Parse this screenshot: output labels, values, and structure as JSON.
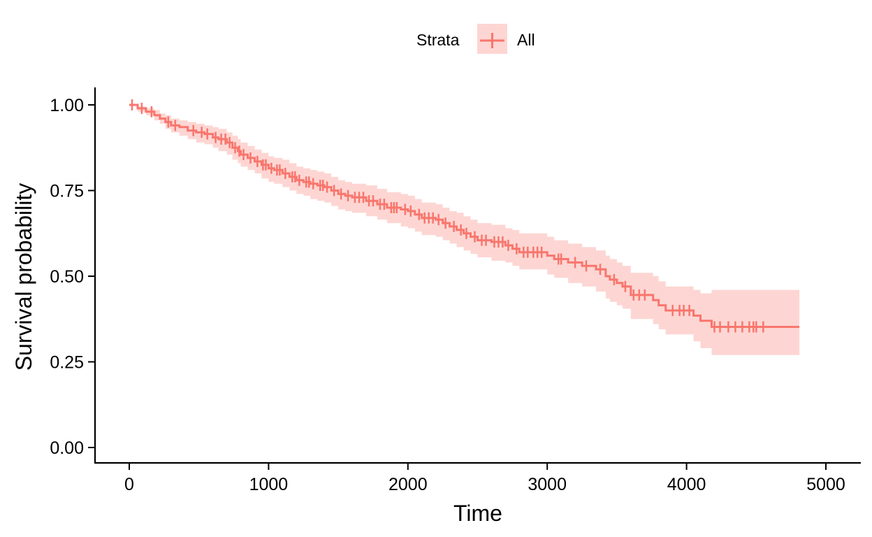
{
  "chart_data": {
    "type": "line",
    "subtype": "kaplan-meier",
    "title": "",
    "xlabel": "Time",
    "ylabel": "Survival probability",
    "xlim": [
      -250,
      5250
    ],
    "ylim": [
      -0.05,
      1.05
    ],
    "x_ticks": [
      0,
      1000,
      2000,
      3000,
      4000,
      5000
    ],
    "x_tick_labels": [
      "0",
      "1000",
      "2000",
      "3000",
      "4000",
      "5000"
    ],
    "y_ticks": [
      0,
      0.25,
      0.5,
      0.75,
      1.0
    ],
    "y_tick_labels": [
      "0.00",
      "0.25",
      "0.50",
      "0.75",
      "1.00"
    ],
    "grid": false,
    "legend": {
      "title": "Strata",
      "position": "top",
      "entries": [
        "All"
      ]
    },
    "colors": {
      "line": "#F8766D",
      "band": "#F8766D",
      "band_opacity": 0.3
    },
    "series": [
      {
        "name": "All",
        "steps": [
          [
            0,
            1.0
          ],
          [
            60,
            0.99
          ],
          [
            120,
            0.98
          ],
          [
            180,
            0.97
          ],
          [
            220,
            0.96
          ],
          [
            260,
            0.95
          ],
          [
            300,
            0.94
          ],
          [
            360,
            0.935
          ],
          [
            420,
            0.925
          ],
          [
            480,
            0.92
          ],
          [
            540,
            0.915
          ],
          [
            600,
            0.905
          ],
          [
            640,
            0.9
          ],
          [
            700,
            0.89
          ],
          [
            740,
            0.875
          ],
          [
            780,
            0.865
          ],
          [
            800,
            0.855
          ],
          [
            850,
            0.845
          ],
          [
            900,
            0.835
          ],
          [
            950,
            0.825
          ],
          [
            1000,
            0.815
          ],
          [
            1040,
            0.81
          ],
          [
            1100,
            0.8
          ],
          [
            1150,
            0.79
          ],
          [
            1200,
            0.78
          ],
          [
            1250,
            0.775
          ],
          [
            1300,
            0.77
          ],
          [
            1350,
            0.765
          ],
          [
            1400,
            0.76
          ],
          [
            1450,
            0.75
          ],
          [
            1500,
            0.74
          ],
          [
            1550,
            0.735
          ],
          [
            1600,
            0.73
          ],
          [
            1700,
            0.72
          ],
          [
            1780,
            0.71
          ],
          [
            1850,
            0.7
          ],
          [
            1950,
            0.695
          ],
          [
            2000,
            0.69
          ],
          [
            2050,
            0.68
          ],
          [
            2100,
            0.67
          ],
          [
            2200,
            0.665
          ],
          [
            2250,
            0.655
          ],
          [
            2300,
            0.645
          ],
          [
            2350,
            0.635
          ],
          [
            2400,
            0.625
          ],
          [
            2450,
            0.615
          ],
          [
            2500,
            0.605
          ],
          [
            2600,
            0.6
          ],
          [
            2700,
            0.59
          ],
          [
            2750,
            0.58
          ],
          [
            2800,
            0.57
          ],
          [
            3000,
            0.56
          ],
          [
            3050,
            0.55
          ],
          [
            3150,
            0.54
          ],
          [
            3250,
            0.53
          ],
          [
            3350,
            0.52
          ],
          [
            3420,
            0.5
          ],
          [
            3450,
            0.49
          ],
          [
            3500,
            0.48
          ],
          [
            3540,
            0.47
          ],
          [
            3600,
            0.445
          ],
          [
            3760,
            0.43
          ],
          [
            3800,
            0.415
          ],
          [
            3850,
            0.4
          ],
          [
            4050,
            0.385
          ],
          [
            4100,
            0.37
          ],
          [
            4180,
            0.352
          ],
          [
            4810,
            0.352
          ]
        ],
        "band": [
          [
            0,
            1.0,
            1.0
          ],
          [
            60,
            0.995,
            0.98
          ],
          [
            120,
            0.99,
            0.97
          ],
          [
            180,
            0.985,
            0.955
          ],
          [
            220,
            0.975,
            0.945
          ],
          [
            260,
            0.97,
            0.93
          ],
          [
            300,
            0.96,
            0.92
          ],
          [
            360,
            0.955,
            0.91
          ],
          [
            420,
            0.95,
            0.9
          ],
          [
            480,
            0.945,
            0.89
          ],
          [
            540,
            0.94,
            0.885
          ],
          [
            600,
            0.935,
            0.875
          ],
          [
            640,
            0.93,
            0.865
          ],
          [
            700,
            0.92,
            0.855
          ],
          [
            740,
            0.91,
            0.84
          ],
          [
            780,
            0.9,
            0.83
          ],
          [
            800,
            0.89,
            0.82
          ],
          [
            850,
            0.88,
            0.81
          ],
          [
            900,
            0.87,
            0.8
          ],
          [
            950,
            0.86,
            0.785
          ],
          [
            1000,
            0.85,
            0.775
          ],
          [
            1040,
            0.845,
            0.77
          ],
          [
            1100,
            0.84,
            0.76
          ],
          [
            1150,
            0.83,
            0.75
          ],
          [
            1200,
            0.82,
            0.74
          ],
          [
            1250,
            0.815,
            0.735
          ],
          [
            1300,
            0.81,
            0.725
          ],
          [
            1350,
            0.805,
            0.72
          ],
          [
            1400,
            0.8,
            0.715
          ],
          [
            1450,
            0.79,
            0.705
          ],
          [
            1500,
            0.78,
            0.695
          ],
          [
            1550,
            0.775,
            0.69
          ],
          [
            1600,
            0.77,
            0.685
          ],
          [
            1700,
            0.765,
            0.675
          ],
          [
            1780,
            0.755,
            0.665
          ],
          [
            1850,
            0.745,
            0.655
          ],
          [
            1950,
            0.74,
            0.645
          ],
          [
            2000,
            0.735,
            0.64
          ],
          [
            2050,
            0.725,
            0.63
          ],
          [
            2100,
            0.715,
            0.62
          ],
          [
            2200,
            0.71,
            0.615
          ],
          [
            2250,
            0.7,
            0.605
          ],
          [
            2300,
            0.69,
            0.595
          ],
          [
            2350,
            0.685,
            0.585
          ],
          [
            2400,
            0.675,
            0.575
          ],
          [
            2450,
            0.665,
            0.565
          ],
          [
            2500,
            0.655,
            0.555
          ],
          [
            2600,
            0.65,
            0.545
          ],
          [
            2700,
            0.64,
            0.54
          ],
          [
            2750,
            0.635,
            0.53
          ],
          [
            2800,
            0.625,
            0.52
          ],
          [
            3000,
            0.615,
            0.505
          ],
          [
            3050,
            0.605,
            0.495
          ],
          [
            3150,
            0.595,
            0.48
          ],
          [
            3250,
            0.585,
            0.47
          ],
          [
            3350,
            0.575,
            0.455
          ],
          [
            3420,
            0.56,
            0.435
          ],
          [
            3450,
            0.55,
            0.425
          ],
          [
            3500,
            0.54,
            0.415
          ],
          [
            3540,
            0.53,
            0.405
          ],
          [
            3600,
            0.51,
            0.375
          ],
          [
            3760,
            0.5,
            0.36
          ],
          [
            3800,
            0.485,
            0.345
          ],
          [
            3850,
            0.47,
            0.33
          ],
          [
            4050,
            0.46,
            0.31
          ],
          [
            4100,
            0.45,
            0.29
          ],
          [
            4180,
            0.46,
            0.27
          ],
          [
            4810,
            0.46,
            0.27
          ]
        ],
        "censor_times": [
          20,
          90,
          160,
          280,
          330,
          460,
          520,
          560,
          620,
          660,
          690,
          720,
          760,
          790,
          820,
          870,
          920,
          960,
          980,
          1020,
          1060,
          1080,
          1120,
          1170,
          1190,
          1220,
          1270,
          1290,
          1320,
          1370,
          1390,
          1420,
          1470,
          1520,
          1570,
          1620,
          1650,
          1680,
          1720,
          1750,
          1800,
          1830,
          1880,
          1900,
          1920,
          1980,
          2020,
          2080,
          2120,
          2150,
          2180,
          2220,
          2270,
          2330,
          2380,
          2420,
          2480,
          2530,
          2560,
          2620,
          2650,
          2680,
          2720,
          2780,
          2830,
          2860,
          2900,
          2930,
          2960,
          3080,
          3100,
          3200,
          3280,
          3380,
          3480,
          3560,
          3620,
          3660,
          3700,
          3900,
          3950,
          3980,
          4020,
          4200,
          4240,
          4300,
          4350,
          4400,
          4450,
          4480,
          4500,
          4550
        ]
      }
    ]
  }
}
